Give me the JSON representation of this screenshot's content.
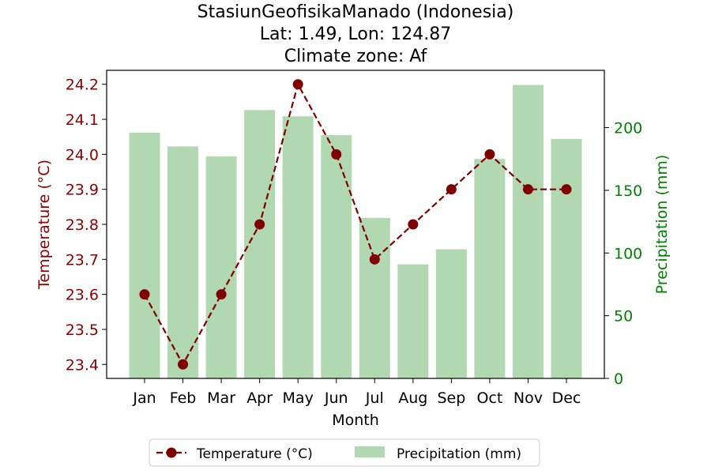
{
  "chart_data": {
    "type": "bar+line",
    "title": [
      "StasiunGeofisikaManado (Indonesia)",
      "Lat: 1.49, Lon: 124.87",
      "Climate zone: Af"
    ],
    "xlabel": "Month",
    "ylabel_left": "Temperature (°C)",
    "ylabel_right": "Precipitation (mm)",
    "categories": [
      "Jan",
      "Feb",
      "Mar",
      "Apr",
      "May",
      "Jun",
      "Jul",
      "Aug",
      "Sep",
      "Oct",
      "Nov",
      "Dec"
    ],
    "temperature": {
      "name": "Temperature (°C)",
      "values": [
        23.6,
        23.4,
        23.6,
        23.8,
        24.2,
        24.0,
        23.7,
        23.8,
        23.9,
        24.0,
        23.9,
        23.9
      ],
      "color": "#800000"
    },
    "precipitation": {
      "name": "Precipitation (mm)",
      "values": [
        196,
        185,
        177,
        214,
        209,
        194,
        128,
        91,
        103,
        175,
        234,
        191
      ],
      "color": "#b2d8b2"
    },
    "ylim_left": [
      23.36,
      24.24
    ],
    "yticks_left": [
      "23.4",
      "23.5",
      "23.6",
      "23.7",
      "23.8",
      "23.9",
      "24.0",
      "24.1",
      "24.2"
    ],
    "ylim_right": [
      0,
      245.7
    ],
    "yticks_right": [
      "0",
      "50",
      "100",
      "150",
      "200"
    ],
    "left_axis_color": "#8b0000",
    "right_axis_color": "#008000",
    "legend_position": "bottom-center",
    "grid": false
  }
}
